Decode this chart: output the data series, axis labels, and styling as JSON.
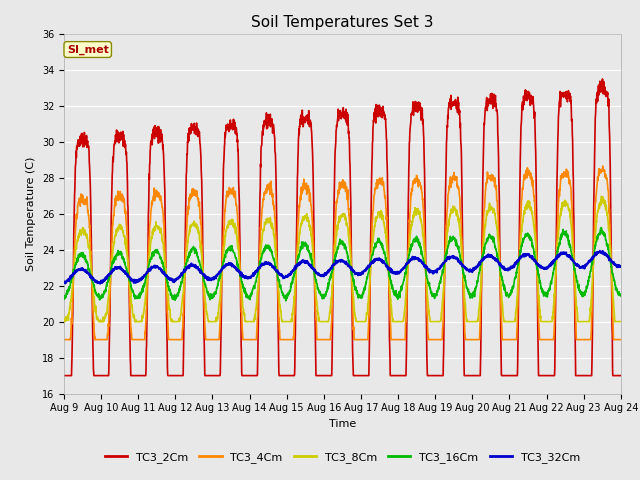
{
  "title": "Soil Temperatures Set 3",
  "xlabel": "Time",
  "ylabel": "Soil Temperature (C)",
  "ylim": [
    16,
    36
  ],
  "xtick_labels": [
    "Aug 9",
    "Aug 10",
    "Aug 11",
    "Aug 12",
    "Aug 13",
    "Aug 14",
    "Aug 15",
    "Aug 16",
    "Aug 17",
    "Aug 18",
    "Aug 19",
    "Aug 20",
    "Aug 21",
    "Aug 22",
    "Aug 23",
    "Aug 24"
  ],
  "ytick_labels": [
    16,
    18,
    20,
    22,
    24,
    26,
    28,
    30,
    32,
    34,
    36
  ],
  "series": {
    "TC3_2Cm": {
      "color": "#cc0000",
      "lw": 1.2
    },
    "TC3_4Cm": {
      "color": "#ff8800",
      "lw": 1.2
    },
    "TC3_8Cm": {
      "color": "#cccc00",
      "lw": 1.2
    },
    "TC3_16Cm": {
      "color": "#00bb00",
      "lw": 1.2
    },
    "TC3_32Cm": {
      "color": "#0000cc",
      "lw": 1.5
    }
  },
  "annotation_text": "SI_met",
  "annotation_color": "#aa0000",
  "annotation_bg": "#ffffcc",
  "annotation_border": "#888800",
  "plot_bg_color": "#e8e8e8",
  "grid_color": "#ffffff",
  "fig_bg_color": "#e8e8e8",
  "title_fontsize": 11,
  "axis_fontsize": 8,
  "tick_fontsize": 7,
  "legend_fontsize": 8
}
